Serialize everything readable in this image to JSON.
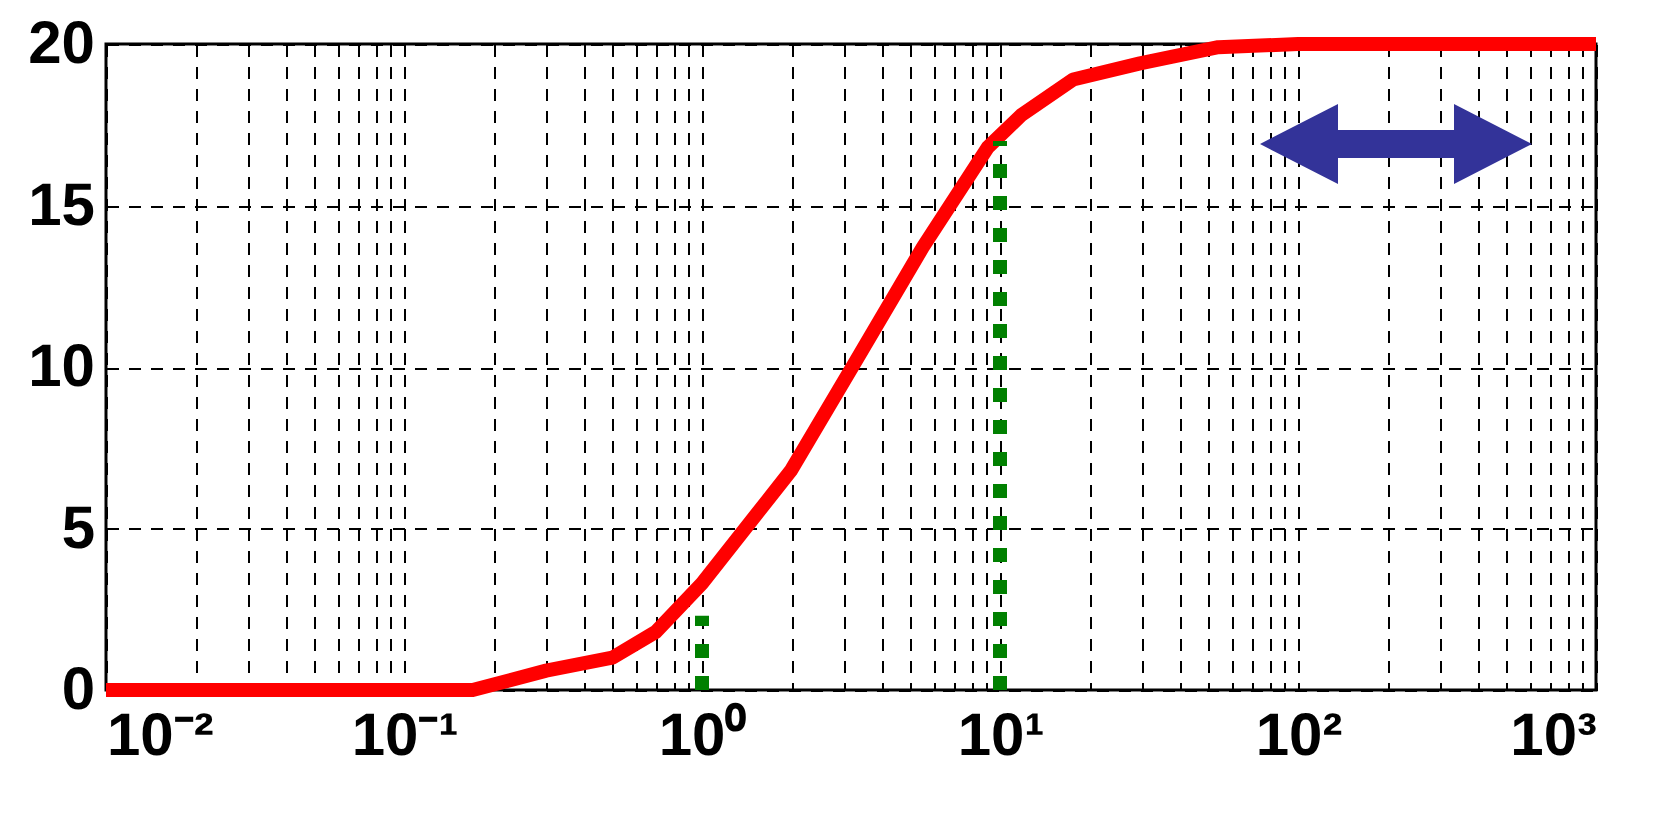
{
  "chart_data": {
    "type": "line",
    "series": [
      {
        "color": "#ff0000",
        "line_style": "solid",
        "x": [
          0.01,
          0.17,
          0.3,
          0.5,
          0.7,
          1,
          1.99,
          3.29,
          5.5,
          9.1,
          11.8,
          17.6,
          29.5,
          54,
          100,
          1000
        ],
        "values": [
          0,
          0,
          0.6,
          1.0,
          1.8,
          3.3,
          6.8,
          10.2,
          13.7,
          16.8,
          17.8,
          18.9,
          19.4,
          19.9,
          20,
          20
        ]
      },
      {
        "color": "#008000",
        "line_style": "dotted",
        "x": [
          1,
          1
        ],
        "values": [
          0,
          2.3
        ]
      },
      {
        "color": "#008000",
        "line_style": "dotted",
        "x": [
          10,
          10
        ],
        "values": [
          0,
          17
        ]
      }
    ],
    "log": "x",
    "xlim": [
      0.01,
      1000
    ],
    "ylim": [
      0,
      20
    ],
    "xticks": [
      {
        "value": 0.01,
        "label": "10⁻²"
      },
      {
        "value": 0.02,
        "label": null
      },
      {
        "value": 0.03,
        "label": null
      },
      {
        "value": 0.04,
        "label": null
      },
      {
        "value": 0.05,
        "label": null
      },
      {
        "value": 0.06,
        "label": null
      },
      {
        "value": 0.07,
        "label": null
      },
      {
        "value": 0.08,
        "label": null
      },
      {
        "value": 0.09,
        "label": null
      },
      {
        "value": 0.1,
        "label": "10⁻¹"
      },
      {
        "value": 0.2,
        "label": null
      },
      {
        "value": 0.3,
        "label": null
      },
      {
        "value": 0.4,
        "label": null
      },
      {
        "value": 0.5,
        "label": null
      },
      {
        "value": 0.6,
        "label": null
      },
      {
        "value": 0.7,
        "label": null
      },
      {
        "value": 0.8,
        "label": null
      },
      {
        "value": 0.9,
        "label": null
      },
      {
        "value": 1,
        "label": "10⁰"
      },
      {
        "value": 2,
        "label": null
      },
      {
        "value": 3,
        "label": null
      },
      {
        "value": 4,
        "label": null
      },
      {
        "value": 5,
        "label": null
      },
      {
        "value": 6,
        "label": null
      },
      {
        "value": 7,
        "label": null
      },
      {
        "value": 8,
        "label": null
      },
      {
        "value": 9,
        "label": null
      },
      {
        "value": 10,
        "label": "10¹"
      },
      {
        "value": 20,
        "label": null
      },
      {
        "value": 30,
        "label": null
      },
      {
        "value": 40,
        "label": null
      },
      {
        "value": 50,
        "label": null
      },
      {
        "value": 60,
        "label": null
      },
      {
        "value": 70,
        "label": null
      },
      {
        "value": 80,
        "label": null
      },
      {
        "value": 90,
        "label": null
      },
      {
        "value": 100,
        "label": "10²"
      },
      {
        "value": 200,
        "label": null
      },
      {
        "value": 300,
        "label": null
      },
      {
        "value": 400,
        "label": null
      },
      {
        "value": 500,
        "label": null
      },
      {
        "value": 600,
        "label": null
      },
      {
        "value": 700,
        "label": null
      },
      {
        "value": 800,
        "label": null
      },
      {
        "value": 900,
        "label": null
      },
      {
        "value": 1000,
        "label": "10³"
      }
    ],
    "yticks": [
      0,
      5,
      10,
      15,
      20
    ],
    "grid": true,
    "marker": "none"
  }
}
